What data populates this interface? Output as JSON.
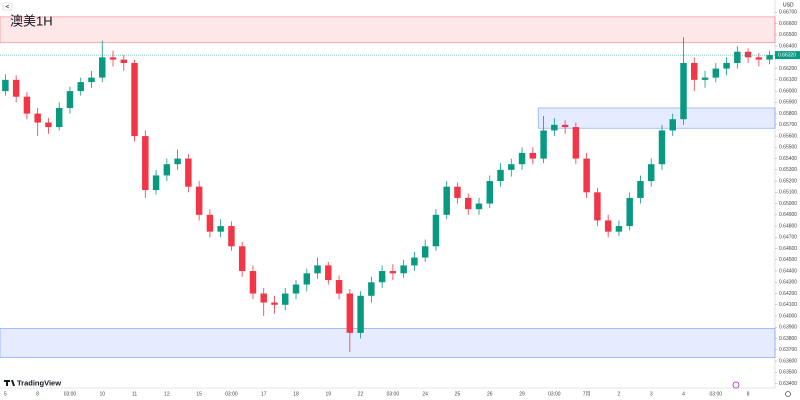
{
  "chart_data": {
    "type": "candlestick",
    "title": "澳美1H",
    "currency": "USD",
    "brand": "TradingView",
    "categories": [
      "5",
      null,
      null,
      "8",
      null,
      null,
      "03:00",
      null,
      null,
      "10",
      null,
      null,
      "11",
      null,
      null,
      "12",
      null,
      null,
      "15",
      null,
      null,
      "03:00",
      null,
      null,
      "17",
      null,
      null,
      "18",
      null,
      null,
      "19",
      null,
      null,
      "22",
      null,
      null,
      "03:00",
      null,
      null,
      "24",
      null,
      null,
      "25",
      null,
      null,
      "26",
      null,
      null,
      "29",
      null,
      null,
      "03:00",
      null,
      null,
      "7月",
      null,
      null,
      "2",
      null,
      null,
      "3",
      null,
      null,
      "4",
      null,
      null,
      "03:00",
      null,
      null,
      "8",
      null,
      null
    ],
    "open": [
      0.66,
      0.661,
      0.6595,
      0.658,
      0.6572,
      0.6568,
      0.6585,
      0.66,
      0.6608,
      0.6612,
      0.663,
      0.6628,
      0.6625,
      0.656,
      0.6512,
      0.6525,
      0.6535,
      0.654,
      0.6515,
      0.649,
      0.6475,
      0.648,
      0.6462,
      0.644,
      0.642,
      0.6412,
      0.641,
      0.642,
      0.6428,
      0.6438,
      0.6445,
      0.6432,
      0.642,
      0.6385,
      0.6418,
      0.643,
      0.644,
      0.6438,
      0.6445,
      0.6452,
      0.6462,
      0.649,
      0.6515,
      0.6505,
      0.6495,
      0.65,
      0.652,
      0.653,
      0.6535,
      0.6545,
      0.654,
      0.6565,
      0.657,
      0.6568,
      0.654,
      0.651,
      0.6485,
      0.6475,
      0.648,
      0.6505,
      0.652,
      0.6535,
      0.6565,
      0.6575,
      0.6625,
      0.661,
      0.6612,
      0.662,
      0.6625,
      0.6635,
      0.663,
      0.6628
    ],
    "high": [
      0.6615,
      0.6614,
      0.6599,
      0.6585,
      0.6576,
      0.659,
      0.6604,
      0.6612,
      0.6618,
      0.6645,
      0.6636,
      0.6632,
      0.6628,
      0.6565,
      0.653,
      0.654,
      0.6548,
      0.6544,
      0.652,
      0.6495,
      0.6486,
      0.6484,
      0.6466,
      0.6445,
      0.6425,
      0.6418,
      0.6425,
      0.6432,
      0.6442,
      0.6452,
      0.6448,
      0.6436,
      0.6424,
      0.6422,
      0.6435,
      0.6445,
      0.6446,
      0.645,
      0.6457,
      0.6468,
      0.6495,
      0.652,
      0.6519,
      0.6509,
      0.6505,
      0.6525,
      0.6536,
      0.654,
      0.655,
      0.655,
      0.6578,
      0.6576,
      0.6574,
      0.6572,
      0.6545,
      0.6514,
      0.649,
      0.6485,
      0.651,
      0.6525,
      0.654,
      0.657,
      0.658,
      0.6648,
      0.663,
      0.6618,
      0.6625,
      0.663,
      0.664,
      0.6638,
      0.6634,
      0.6636
    ],
    "low": [
      0.6596,
      0.659,
      0.6575,
      0.656,
      0.6562,
      0.6565,
      0.658,
      0.6596,
      0.6603,
      0.6608,
      0.6622,
      0.6618,
      0.6555,
      0.6505,
      0.6508,
      0.652,
      0.653,
      0.651,
      0.6485,
      0.647,
      0.647,
      0.6458,
      0.6435,
      0.6415,
      0.64,
      0.6402,
      0.6405,
      0.6415,
      0.6422,
      0.6433,
      0.6428,
      0.6415,
      0.6368,
      0.638,
      0.6412,
      0.6425,
      0.6432,
      0.6434,
      0.644,
      0.6448,
      0.6458,
      0.6486,
      0.65,
      0.649,
      0.649,
      0.6496,
      0.6515,
      0.6524,
      0.653,
      0.6535,
      0.6536,
      0.656,
      0.6562,
      0.6535,
      0.6505,
      0.648,
      0.647,
      0.6471,
      0.6476,
      0.65,
      0.6515,
      0.653,
      0.656,
      0.657,
      0.66,
      0.6603,
      0.6608,
      0.6614,
      0.662,
      0.6625,
      0.6622,
      0.6624
    ],
    "close": [
      0.661,
      0.6595,
      0.658,
      0.6572,
      0.6568,
      0.6585,
      0.66,
      0.6608,
      0.6612,
      0.663,
      0.6628,
      0.6625,
      0.656,
      0.6512,
      0.6525,
      0.6535,
      0.654,
      0.6515,
      0.649,
      0.6475,
      0.648,
      0.6462,
      0.644,
      0.642,
      0.6412,
      0.641,
      0.642,
      0.6428,
      0.6438,
      0.6445,
      0.6432,
      0.642,
      0.6385,
      0.6418,
      0.643,
      0.644,
      0.6438,
      0.6445,
      0.6452,
      0.6462,
      0.649,
      0.6515,
      0.6505,
      0.6495,
      0.65,
      0.652,
      0.653,
      0.6535,
      0.6545,
      0.654,
      0.6565,
      0.657,
      0.6568,
      0.654,
      0.651,
      0.6485,
      0.6475,
      0.648,
      0.6505,
      0.652,
      0.6535,
      0.6565,
      0.6575,
      0.6625,
      0.661,
      0.6612,
      0.662,
      0.6625,
      0.6635,
      0.663,
      0.6628,
      0.6632
    ],
    "up_color": "#089981",
    "down_color": "#f23645",
    "ylim": [
      0.6336,
      0.6681
    ],
    "yticks": [
      {
        "value": 0.667,
        "label": "0.66700"
      },
      {
        "value": 0.666,
        "label": "0.66600"
      },
      {
        "value": 0.665,
        "label": "0.66500"
      },
      {
        "value": 0.664,
        "label": "0.66400"
      },
      {
        "value": 0.663,
        "label": "0.66300"
      },
      {
        "value": 0.662,
        "label": "0.66200"
      },
      {
        "value": 0.661,
        "label": "0.66100"
      },
      {
        "value": 0.66,
        "label": "0.66000"
      },
      {
        "value": 0.659,
        "label": "0.65900"
      },
      {
        "value": 0.658,
        "label": "0.65800"
      },
      {
        "value": 0.657,
        "label": "0.65700"
      },
      {
        "value": 0.656,
        "label": "0.65600"
      },
      {
        "value": 0.655,
        "label": "0.65500"
      },
      {
        "value": 0.654,
        "label": "0.65400"
      },
      {
        "value": 0.653,
        "label": "0.65300"
      },
      {
        "value": 0.652,
        "label": "0.65200"
      },
      {
        "value": 0.651,
        "label": "0.65100"
      },
      {
        "value": 0.65,
        "label": "0.65000"
      },
      {
        "value": 0.649,
        "label": "0.64900"
      },
      {
        "value": 0.648,
        "label": "0.64800"
      },
      {
        "value": 0.647,
        "label": "0.64700"
      },
      {
        "value": 0.646,
        "label": "0.64600"
      },
      {
        "value": 0.645,
        "label": "0.64500"
      },
      {
        "value": 0.644,
        "label": "0.64400"
      },
      {
        "value": 0.643,
        "label": "0.64300"
      },
      {
        "value": 0.642,
        "label": "0.64200"
      },
      {
        "value": 0.641,
        "label": "0.64100"
      },
      {
        "value": 0.64,
        "label": "0.64000"
      },
      {
        "value": 0.639,
        "label": "0.63900"
      },
      {
        "value": 0.638,
        "label": "0.63800"
      },
      {
        "value": 0.637,
        "label": "0.63700"
      },
      {
        "value": 0.636,
        "label": "0.63600"
      },
      {
        "value": 0.635,
        "label": "0.63500"
      },
      {
        "value": 0.634,
        "label": "0.63400"
      }
    ],
    "zones": [
      {
        "top": 0.6666,
        "bottom": 0.6643,
        "color": "#f23645"
      },
      {
        "top": 0.6585,
        "bottom": 0.6567,
        "color": "#2962ff"
      },
      {
        "top": 0.6389,
        "bottom": 0.6363,
        "color": "#2962ff"
      }
    ],
    "last_label": "0.66320"
  }
}
